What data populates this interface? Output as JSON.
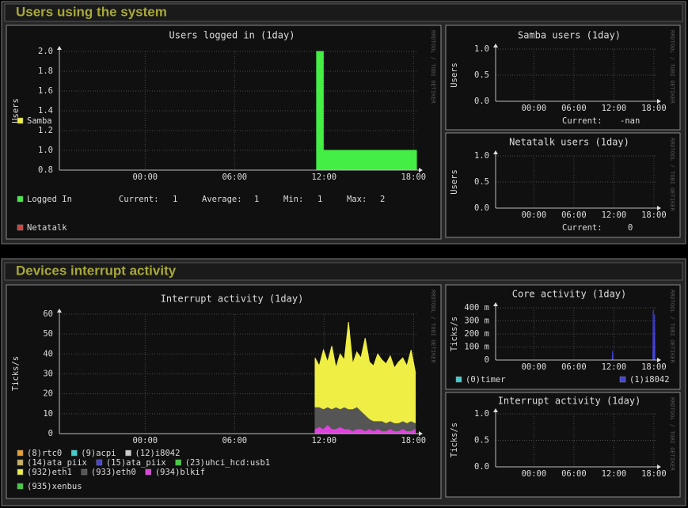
{
  "sections": [
    {
      "title": "Users using the system"
    },
    {
      "title": "Devices interrupt activity"
    }
  ],
  "watermark": "RRDTOOL / TOBI OETIKER",
  "chart_data": [
    {
      "type": "area",
      "title": "Users logged in  (1day)",
      "ylabel": "Users",
      "xlim": [
        -5.75,
        18.25
      ],
      "xticks": [
        {
          "value": 0,
          "label": "00:00"
        },
        {
          "value": 6,
          "label": "06:00"
        },
        {
          "value": 12,
          "label": "12:00"
        },
        {
          "value": 18,
          "label": "18:00"
        }
      ],
      "ylim": [
        0.8,
        2
      ],
      "yticks": [
        0.8,
        {
          "value": 1,
          "label": "1.0"
        },
        1.2,
        1.4,
        1.6,
        1.8,
        {
          "value": 2,
          "label": "2.0"
        }
      ],
      "grid": true,
      "step": true,
      "series": [
        {
          "name": "Logged In",
          "color": "#44ee44",
          "x": [
            11.5,
            11.95,
            18.2
          ],
          "values": [
            2,
            1,
            1
          ]
        }
      ],
      "stats": [
        {
          "label": "Current:",
          "value": 1
        },
        {
          "label": "Average:",
          "value": 1
        },
        {
          "label": "Min:",
          "value": 1
        },
        {
          "label": "Max:",
          "value": 2
        }
      ]
    },
    {
      "type": "area",
      "title": "Samba users  (1day)",
      "ylabel": "Users",
      "xlim": [
        -5.75,
        18.25
      ],
      "xticks": [
        {
          "value": 0,
          "label": "00:00"
        },
        {
          "value": 6,
          "label": "06:00"
        },
        {
          "value": 12,
          "label": "12:00"
        },
        {
          "value": 18,
          "label": "18:00"
        }
      ],
      "ylim": [
        0,
        1
      ],
      "yticks": [
        {
          "value": 0,
          "label": "0.0"
        },
        0.5,
        {
          "value": 1,
          "label": "1.0"
        }
      ],
      "grid": true,
      "series": [
        {
          "name": "Samba",
          "color": "#eeee44",
          "x": [],
          "values": []
        }
      ],
      "stats": [
        {
          "label": "Current:",
          "value": "-nan"
        }
      ]
    },
    {
      "type": "area",
      "title": "Netatalk users  (1day)",
      "ylabel": "Users",
      "xlim": [
        -5.75,
        18.25
      ],
      "xticks": [
        {
          "value": 0,
          "label": "00:00"
        },
        {
          "value": 6,
          "label": "06:00"
        },
        {
          "value": 12,
          "label": "12:00"
        },
        {
          "value": 18,
          "label": "18:00"
        }
      ],
      "ylim": [
        0,
        1
      ],
      "yticks": [
        {
          "value": 0,
          "label": "0.0"
        },
        0.5,
        {
          "value": 1,
          "label": "1.0"
        }
      ],
      "grid": true,
      "series": [
        {
          "name": "Netatalk",
          "color": "#cc4444",
          "x": [
            11.5,
            18.2
          ],
          "values": [
            0,
            0
          ]
        }
      ],
      "stats": [
        {
          "label": "Current:",
          "value": 0
        }
      ]
    },
    {
      "type": "area",
      "title": "Interrupt activity  (1day)",
      "ylabel": "Ticks/s",
      "xlim": [
        -5.75,
        18.25
      ],
      "xticks": [
        {
          "value": 0,
          "label": "00:00"
        },
        {
          "value": 6,
          "label": "06:00"
        },
        {
          "value": 12,
          "label": "12:00"
        },
        {
          "value": 18,
          "label": "18:00"
        }
      ],
      "ylim": [
        0,
        60
      ],
      "yticks": [
        0,
        10,
        20,
        30,
        40,
        50,
        60
      ],
      "grid": true,
      "series": [
        {
          "name": "(8)rtc0",
          "color": "#e8a030",
          "x": [],
          "values": []
        },
        {
          "name": "(9)acpi",
          "color": "#44cccc",
          "x": [],
          "values": []
        },
        {
          "name": "(12)i8042",
          "color": "#cccccc",
          "x": [],
          "values": []
        },
        {
          "name": "(14)ata_piix",
          "color": "#c8b060",
          "x": [],
          "values": []
        },
        {
          "name": "(15)ata_piix",
          "color": "#4444cc",
          "x": [],
          "values": []
        },
        {
          "name": "(23)uhci_hcd:usb1",
          "color": "#44cc44",
          "x": [],
          "values": []
        },
        {
          "name": "(932)eth1",
          "color": "#eeee44",
          "x": [
            11.4,
            11.68,
            11.96,
            12.24,
            12.52,
            12.8,
            13.08,
            13.36,
            13.64,
            13.92,
            14.2,
            14.48,
            14.76,
            15.04,
            15.32,
            15.6,
            15.88,
            16.16,
            16.44,
            16.72,
            17.0,
            17.28,
            17.56,
            17.84,
            18.12
          ],
          "values": [
            38,
            34,
            42,
            36,
            44,
            33,
            40,
            37,
            56,
            35,
            41,
            38,
            48,
            36,
            34,
            40,
            37,
            35,
            39,
            33,
            36,
            38,
            34,
            42,
            31
          ]
        },
        {
          "name": "(933)eth0",
          "color": "#555555",
          "x": [
            11.4,
            11.68,
            11.96,
            12.24,
            12.52,
            12.8,
            13.08,
            13.36,
            13.64,
            13.92,
            14.2,
            14.48,
            14.76,
            15.04,
            15.32,
            15.6,
            15.88,
            16.16,
            16.44,
            16.72,
            17.0,
            17.28,
            17.56,
            17.84,
            18.12
          ],
          "values": [
            13,
            13,
            12,
            13,
            12,
            13,
            12,
            13,
            12,
            12,
            13,
            11,
            9,
            7,
            6,
            6,
            6,
            5,
            6,
            5,
            5,
            6,
            5,
            6,
            5
          ]
        },
        {
          "name": "(934)blkif",
          "color": "#dd44dd",
          "x": [
            11.4,
            11.68,
            11.96,
            12.24,
            12.52,
            12.8,
            13.08,
            13.36,
            13.64,
            13.92,
            14.2,
            14.48,
            14.76,
            15.04,
            15.32,
            15.6,
            15.88,
            16.16,
            16.44,
            16.72,
            17.0,
            17.28,
            17.56,
            17.84,
            18.12
          ],
          "values": [
            2,
            3,
            2,
            4,
            2,
            2,
            3,
            2,
            2,
            1,
            2,
            2,
            1,
            2,
            1,
            2,
            1,
            1,
            2,
            1,
            1,
            2,
            1,
            1,
            2
          ]
        }
      ]
    },
    {
      "type": "area",
      "title": "Core activity  (1day)",
      "ylabel": "Ticks/s",
      "xlim": [
        -5.75,
        18.25
      ],
      "xticks": [
        {
          "value": 0,
          "label": "00:00"
        },
        {
          "value": 6,
          "label": "06:00"
        },
        {
          "value": 12,
          "label": "12:00"
        },
        {
          "value": 18,
          "label": "18:00"
        }
      ],
      "ylim": [
        0,
        0.4
      ],
      "yticks": [
        0,
        {
          "value": 0.1,
          "label": "100 m"
        },
        {
          "value": 0.2,
          "label": "200 m"
        },
        {
          "value": 0.3,
          "label": "300 m"
        },
        {
          "value": 0.4,
          "label": "400 m"
        }
      ],
      "grid": true,
      "series": [
        {
          "name": "(0)timer",
          "color": "#44cccc",
          "x": [],
          "values": []
        },
        {
          "name": "(1)i8042",
          "color": "#4444dd",
          "x": [
            11.75,
            11.8,
            11.85,
            17.85,
            17.9,
            17.95,
            18.05,
            18.1,
            18.15
          ],
          "values": [
            0,
            0.07,
            0,
            0,
            0.38,
            0,
            0,
            0.35,
            0
          ]
        }
      ]
    },
    {
      "type": "area",
      "title": "Interrupt activity  (1day)",
      "ylabel": "Ticks/s",
      "xlim": [
        -5.75,
        18.25
      ],
      "xticks": [
        {
          "value": 0,
          "label": "00:00"
        },
        {
          "value": 6,
          "label": "06:00"
        },
        {
          "value": 12,
          "label": "12:00"
        },
        {
          "value": 18,
          "label": "18:00"
        }
      ],
      "ylim": [
        0,
        1
      ],
      "yticks": [
        {
          "value": 0,
          "label": "0.0"
        },
        0.5,
        {
          "value": 1,
          "label": "1.0"
        }
      ],
      "grid": true,
      "series": [
        {
          "name": "(935)xenbus",
          "color": "#44cc44",
          "x": [
            11.5,
            18.2
          ],
          "values": [
            0,
            0
          ]
        }
      ]
    }
  ]
}
